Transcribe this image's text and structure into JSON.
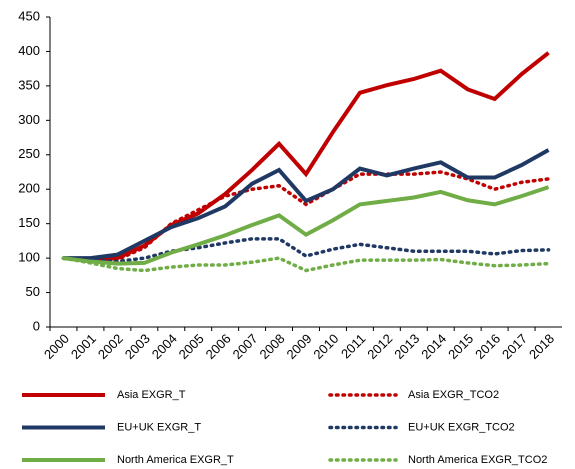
{
  "chart_data": {
    "type": "line",
    "categories": [
      "2000",
      "2001",
      "2002",
      "2003",
      "2004",
      "2005",
      "2006",
      "2007",
      "2008",
      "2009",
      "2010",
      "2011",
      "2012",
      "2013",
      "2014",
      "2015",
      "2016",
      "2017",
      "2018"
    ],
    "ylim": [
      0,
      450
    ],
    "yticks": [
      0,
      50,
      100,
      150,
      200,
      250,
      300,
      350,
      400,
      450
    ],
    "grid": false,
    "series": [
      {
        "name": "Asia EXGR_T",
        "color": "#c00000",
        "style": "solid",
        "values": [
          100,
          97,
          100,
          118,
          148,
          165,
          193,
          228,
          266,
          222,
          283,
          340,
          351,
          360,
          372,
          345,
          331,
          367,
          398
        ]
      },
      {
        "name": "Asia EXGR_TCO2",
        "color": "#c00000",
        "style": "dotted",
        "values": [
          100,
          96,
          98,
          115,
          150,
          170,
          190,
          200,
          205,
          178,
          200,
          222,
          222,
          222,
          225,
          215,
          200,
          210,
          215
        ]
      },
      {
        "name": "EU+UK EXGR_T",
        "color": "#203864",
        "style": "solid",
        "values": [
          100,
          100,
          105,
          125,
          145,
          158,
          175,
          208,
          228,
          183,
          200,
          230,
          220,
          230,
          239,
          217,
          217,
          235,
          257
        ]
      },
      {
        "name": "EU+UK EXGR_TCO2",
        "color": "#203864",
        "style": "dotted",
        "values": [
          100,
          97,
          95,
          100,
          110,
          115,
          122,
          128,
          128,
          103,
          113,
          120,
          115,
          110,
          110,
          110,
          106,
          111,
          112
        ]
      },
      {
        "name": "North America EXGR_T",
        "color": "#70ad47",
        "style": "solid",
        "values": [
          100,
          95,
          92,
          93,
          108,
          120,
          133,
          148,
          162,
          134,
          155,
          178,
          183,
          188,
          196,
          184,
          178,
          190,
          203
        ]
      },
      {
        "name": "North America EXGR_TCO2",
        "color": "#70ad47",
        "style": "dotted",
        "values": [
          100,
          93,
          85,
          82,
          87,
          90,
          90,
          94,
          100,
          82,
          90,
          97,
          97,
          97,
          98,
          93,
          89,
          90,
          92
        ]
      }
    ]
  }
}
